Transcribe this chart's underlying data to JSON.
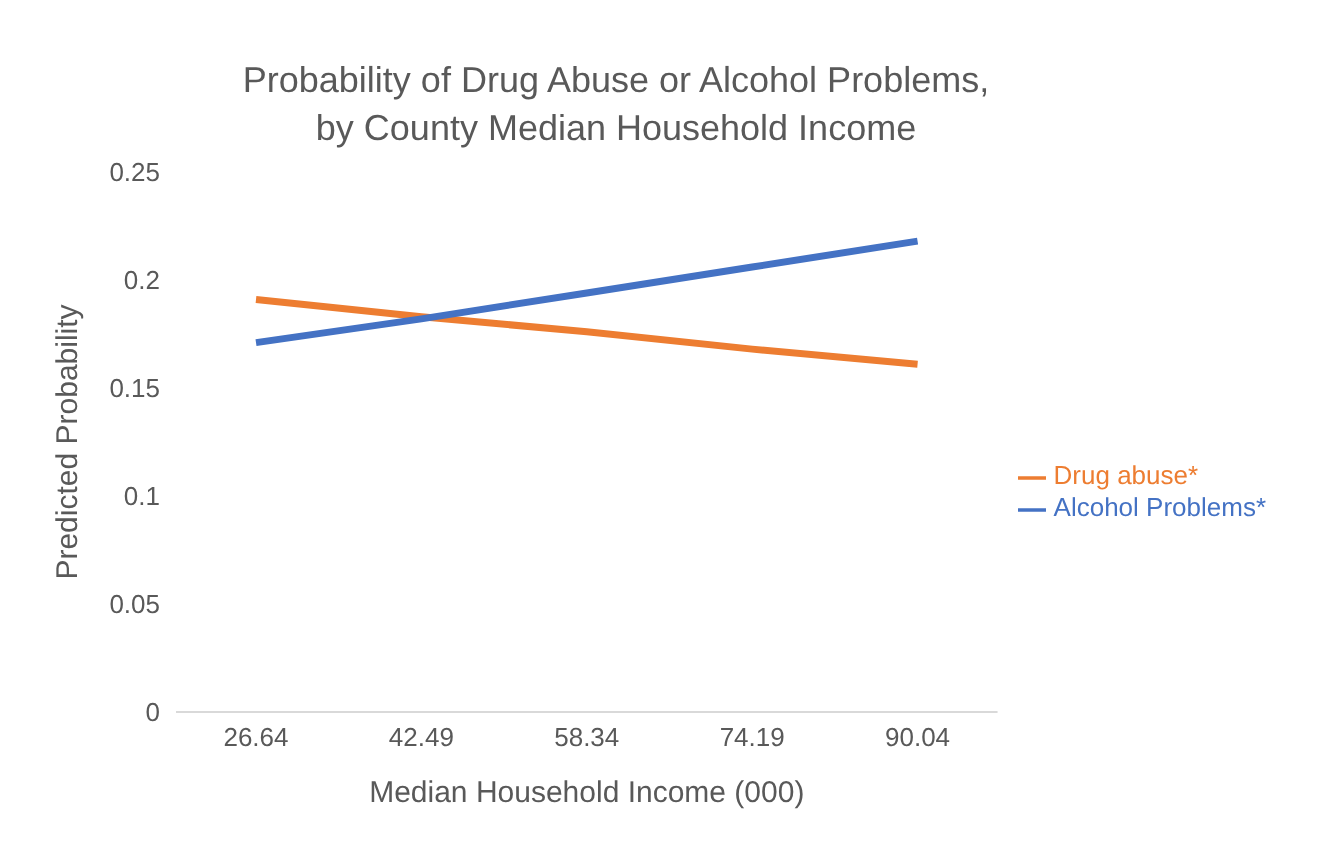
{
  "chart_data": {
    "type": "line",
    "title": "Probability of Drug Abuse or Alcohol Problems,\nby County Median Household Income",
    "xlabel": "Median Household Income (000)",
    "ylabel": "Predicted Probability",
    "categories": [
      "26.64",
      "42.49",
      "58.34",
      "74.19",
      "90.04"
    ],
    "series": [
      {
        "name": "Drug abuse*",
        "color": "#ed7d31",
        "values": [
          0.191,
          0.183,
          0.176,
          0.168,
          0.161
        ]
      },
      {
        "name": "Alcohol Problems*",
        "color": "#4472c4",
        "values": [
          0.171,
          0.182,
          0.194,
          0.206,
          0.218
        ]
      }
    ],
    "ylim": [
      0,
      0.25
    ],
    "yticks": [
      0,
      0.05,
      0.1,
      0.15,
      0.2,
      0.25
    ],
    "grid": false,
    "legend": "right",
    "marker": "none",
    "line_style": "solid"
  }
}
